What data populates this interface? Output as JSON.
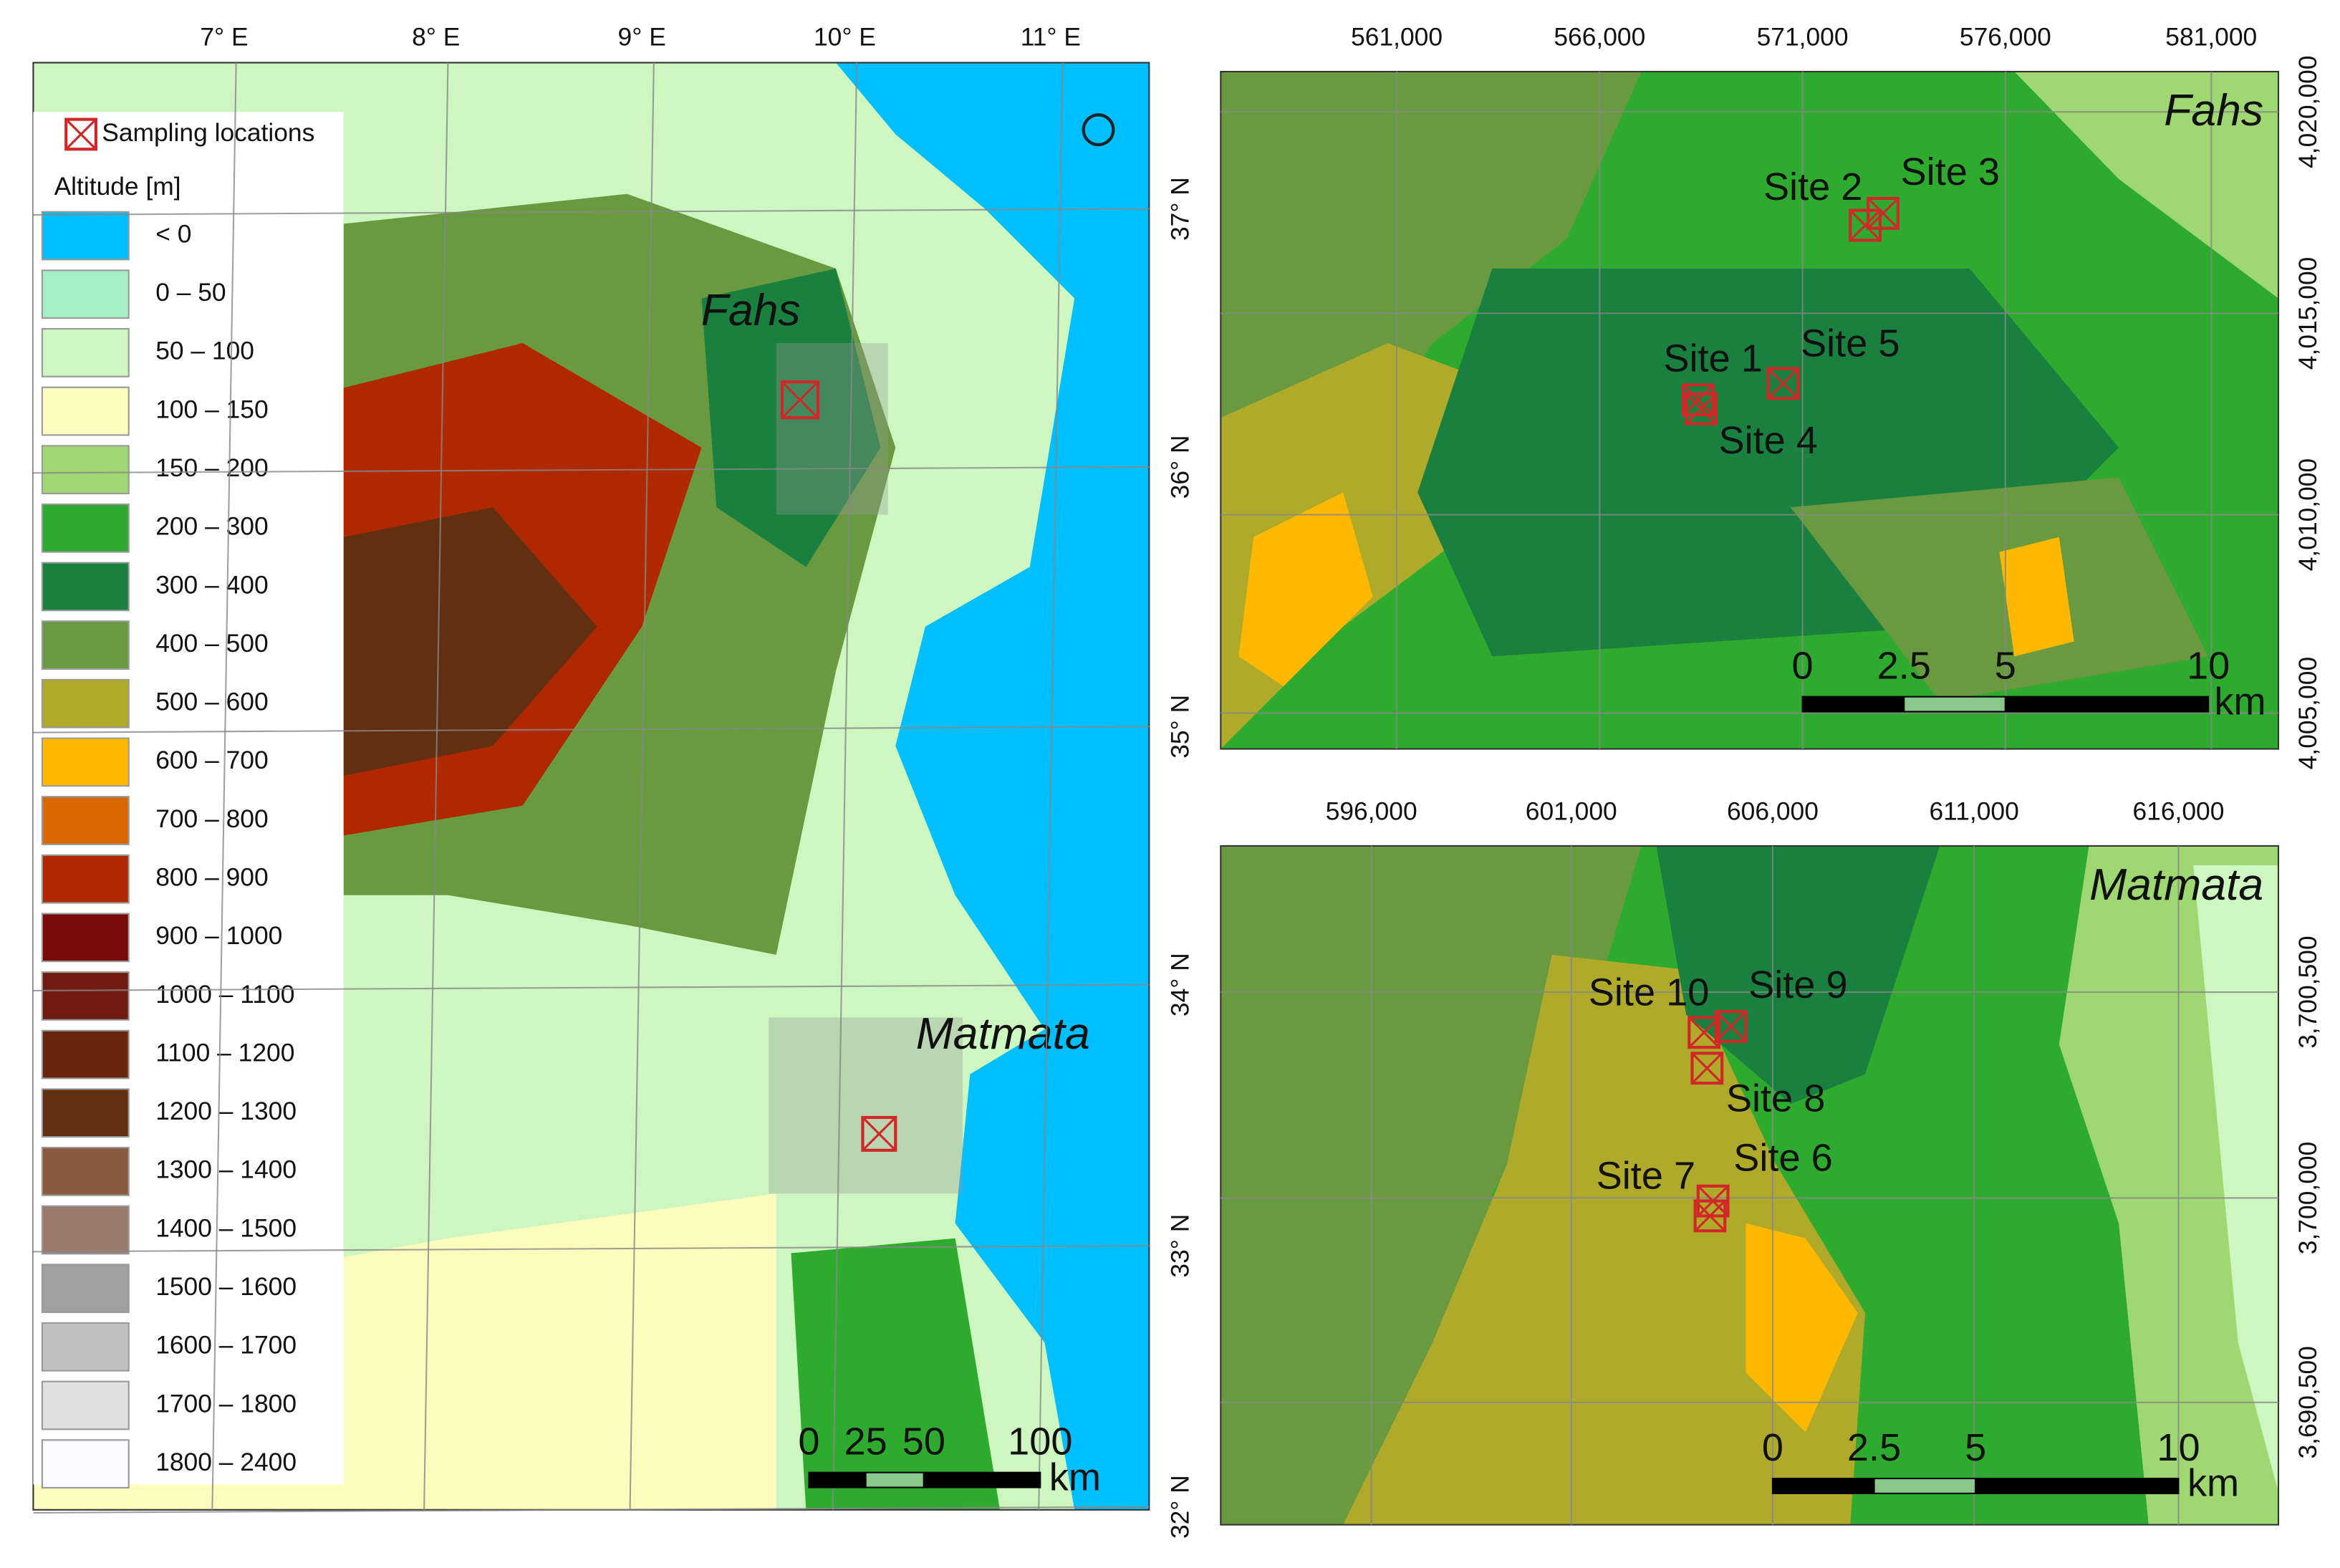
{
  "left_map": {
    "lon_labels": [
      "7° E",
      "8° E",
      "9° E",
      "10° E",
      "11° E"
    ],
    "lat_labels": [
      "37° N",
      "36° N",
      "35° N",
      "34° N",
      "33° N",
      "32° N"
    ],
    "legend": {
      "marker_label": "Sampling locations",
      "title": "Altitude [m]",
      "items": [
        {
          "label": "< 0",
          "color": "#00bfff"
        },
        {
          "label": "0 – 50",
          "color": "#a6eec6"
        },
        {
          "label": "50 – 100",
          "color": "#cdf6c0"
        },
        {
          "label": "100 – 150",
          "color": "#fdfcbd"
        },
        {
          "label": "150 – 200",
          "color": "#9fd873"
        },
        {
          "label": "200 – 300",
          "color": "#2eaa2e"
        },
        {
          "label": "300 – 400",
          "color": "#1a8040"
        },
        {
          "label": "400 – 500",
          "color": "#6a9a40"
        },
        {
          "label": "500 – 600",
          "color": "#b0aa2a"
        },
        {
          "label": "600 – 700",
          "color": "#ffb800"
        },
        {
          "label": "700 – 800",
          "color": "#d86800"
        },
        {
          "label": "800 – 900",
          "color": "#b02800"
        },
        {
          "label": "900 – 1000",
          "color": "#7a0a0a"
        },
        {
          "label": "1000 – 1100",
          "color": "#701a10"
        },
        {
          "label": "1100 – 1200",
          "color": "#6a2410"
        },
        {
          "label": "1200 – 1300",
          "color": "#623010"
        },
        {
          "label": "1300 – 1400",
          "color": "#8a5a40"
        },
        {
          "label": "1400 – 1500",
          "color": "#9a7a6a"
        },
        {
          "label": "1500 – 1600",
          "color": "#a0a0a0"
        },
        {
          "label": "1600 – 1700",
          "color": "#c0c0c0"
        },
        {
          "label": "1700 – 1800",
          "color": "#e0e0e0"
        },
        {
          "label": "1800 – 2400",
          "color": "#fafaff"
        }
      ]
    },
    "places": [
      "Fahs",
      "Matmata"
    ],
    "scale": {
      "labels": [
        "0",
        "25",
        "50",
        "100"
      ],
      "unit": "km"
    }
  },
  "fahs_map": {
    "title": "Fahs",
    "x_labels": [
      "561,000",
      "566,000",
      "571,000",
      "576,000",
      "581,000"
    ],
    "y_labels": [
      "4,020,000",
      "4,015,000",
      "4,010,000",
      "4,005,000"
    ],
    "sites": [
      "Site 2",
      "Site 3",
      "Site 1",
      "Site 5",
      "Site 4"
    ],
    "scale": {
      "labels": [
        "0",
        "2.5",
        "5",
        "10"
      ],
      "unit": "km"
    }
  },
  "matmata_map": {
    "title": "Matmata",
    "x_labels": [
      "596,000",
      "601,000",
      "606,000",
      "611,000",
      "616,000"
    ],
    "y_labels": [
      "3,700,500",
      "3,700,000",
      "3,690,500"
    ],
    "sites": [
      "Site 10",
      "Site 9",
      "Site 8",
      "Site 6",
      "Site 7"
    ],
    "scale": {
      "labels": [
        "0",
        "2.5",
        "5",
        "10"
      ],
      "unit": "km"
    }
  }
}
